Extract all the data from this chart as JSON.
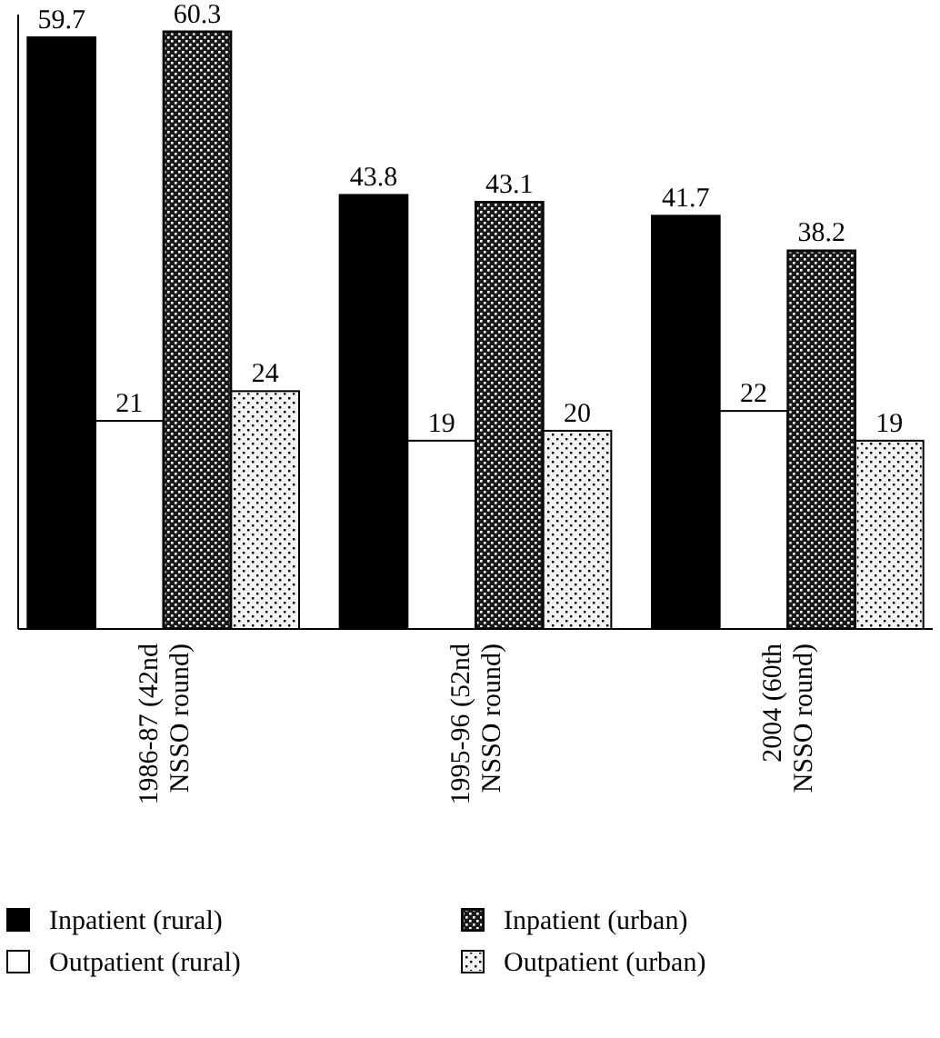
{
  "chart_data": {
    "type": "bar",
    "categories": [
      "1986-87 (42nd NSSO round)",
      "1995-96 (52nd NSSO round)",
      "2004 (60th NSSO round)"
    ],
    "series": [
      {
        "name": "Inpatient (rural)",
        "color": "#000000",
        "values": [
          59.7,
          43.8,
          41.7
        ]
      },
      {
        "name": "Outpatient (rural)",
        "color": "#ffffff",
        "values": [
          21,
          19,
          22
        ]
      },
      {
        "name": "Inpatient (urban)",
        "color": "#1a1a1a",
        "values": [
          60.3,
          43.1,
          38.2
        ]
      },
      {
        "name": "Outpatient (urban)",
        "color": "#f2f2f2",
        "values": [
          24,
          20,
          19
        ]
      }
    ],
    "ylim": [
      0,
      62
    ],
    "tick_labels": "x",
    "data_labels": true,
    "legend": "bottom"
  }
}
